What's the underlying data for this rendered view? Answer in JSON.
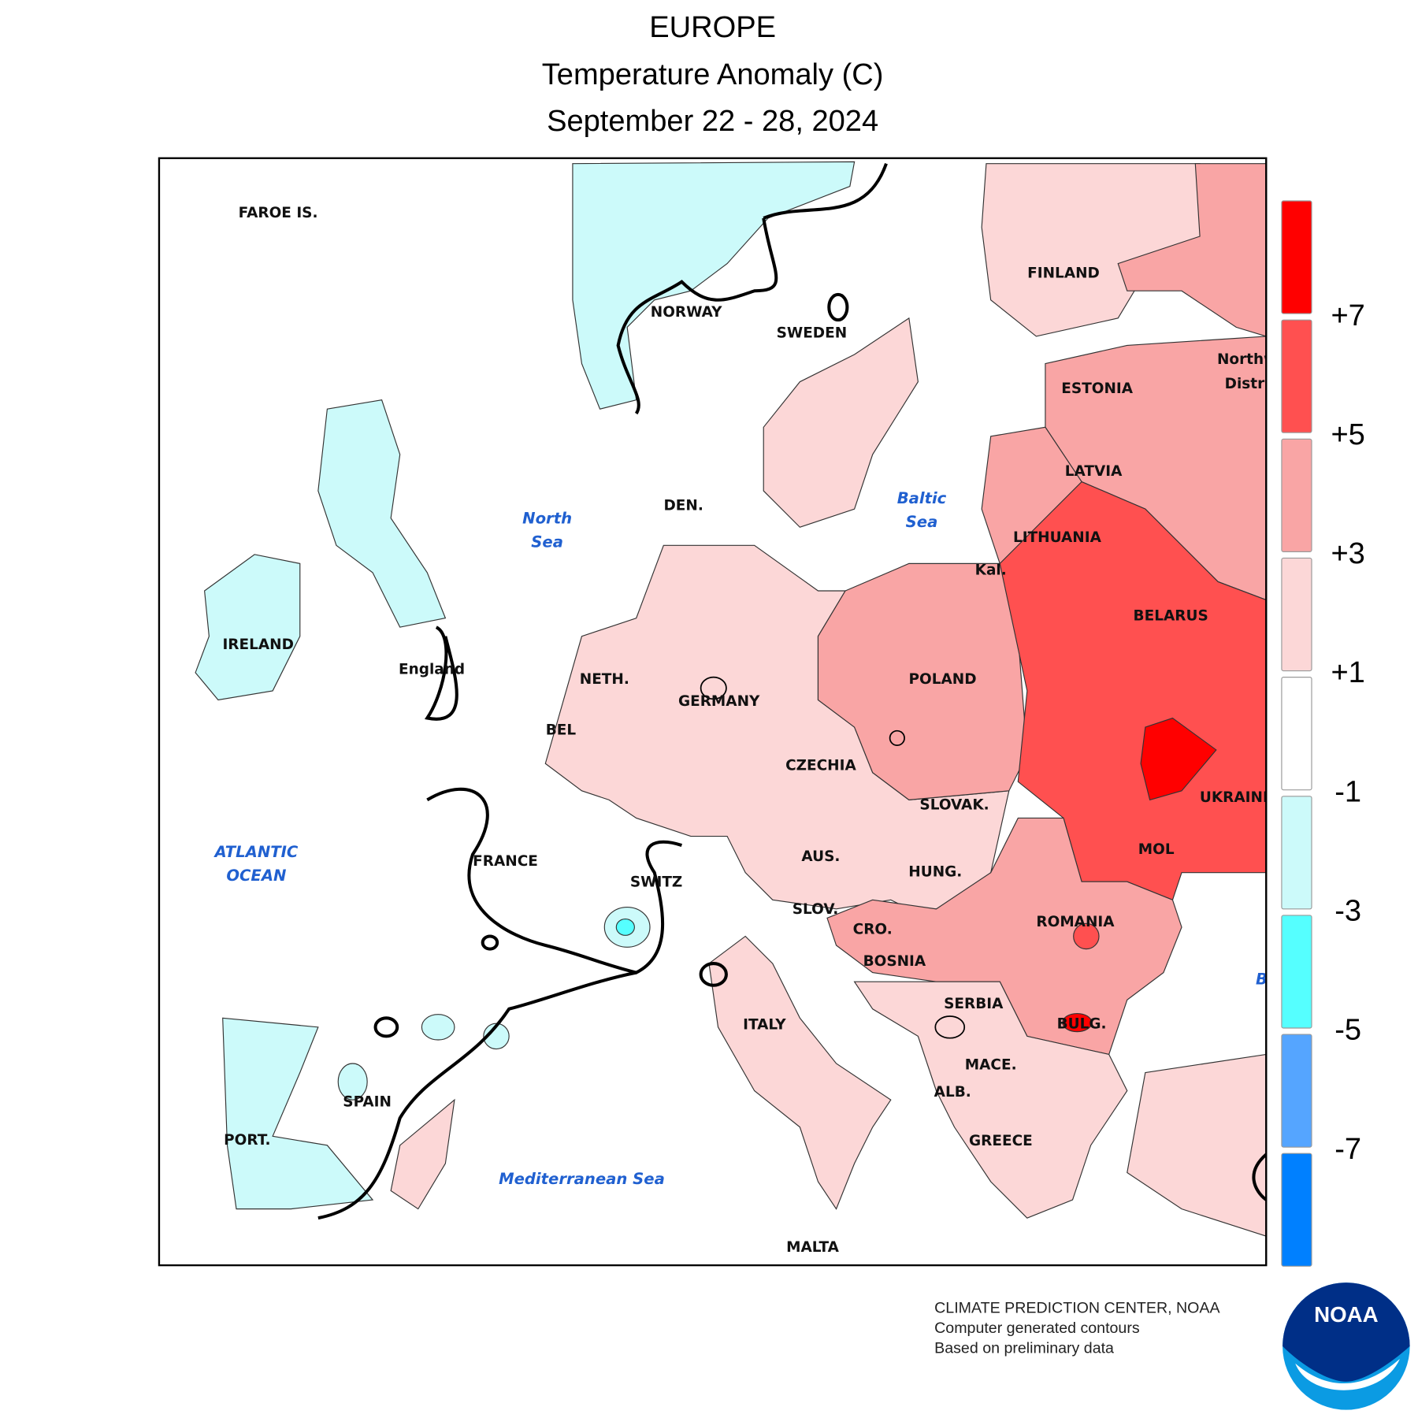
{
  "header": {
    "title": "EUROPE",
    "subtitle": "Temperature Anomaly (C)",
    "date_range": "September 22 - 28, 2024"
  },
  "map": {
    "labels": [
      "FAROE IS.",
      "NORWAY",
      "SWEDEN",
      "FINLAND",
      "ESTONIA",
      "LATVIA",
      "LITHUANIA",
      "Kal.",
      "BELARUS",
      "IRELAND",
      "England",
      "DEN.",
      "NETH.",
      "BEL",
      "GERMANY",
      "POLAND",
      "CZECHIA",
      "SLOVAK.",
      "AUS.",
      "HUNG.",
      "SWITZ",
      "FRANCE",
      "SLOV.",
      "CRO.",
      "BOSNIA",
      "ROMANIA",
      "MOL",
      "UKRAINE",
      "SERBIA",
      "BULG.",
      "MACE.",
      "ALB.",
      "GREECE",
      "ITALY",
      "SPAIN",
      "PORT.",
      "MALTA",
      "Northw",
      "Distri"
    ],
    "seas": [
      "North",
      "Sea",
      "Baltic",
      "Sea",
      "ATLANTIC",
      "OCEAN",
      "Mediterranean Sea",
      "B"
    ]
  },
  "legend": {
    "colors": [
      "#ff0000",
      "#ff5050",
      "#f9a5a5",
      "#fcd7d7",
      "#ffffff",
      "#ccfafa",
      "#55ffff",
      "#55a5ff",
      "#0080ff"
    ],
    "labels": [
      "+7",
      "+5",
      "+3",
      "+1",
      "-1",
      "-3",
      "-5",
      "-7"
    ]
  },
  "footer": {
    "credits": [
      "CLIMATE PREDICTION CENTER, NOAA",
      "Computer generated contours",
      "Based on preliminary data"
    ],
    "logo": "NOAA"
  }
}
